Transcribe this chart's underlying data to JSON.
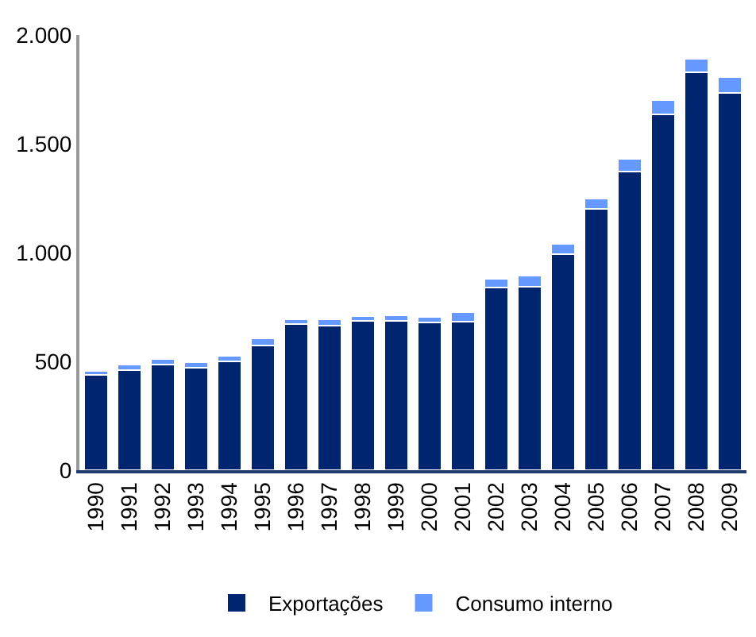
{
  "chart_data": {
    "type": "bar",
    "stacked": true,
    "categories": [
      "1990",
      "1991",
      "1992",
      "1993",
      "1994",
      "1995",
      "1996",
      "1997",
      "1998",
      "1999",
      "2000",
      "2001",
      "2002",
      "2003",
      "2004",
      "2005",
      "2006",
      "2007",
      "2008",
      "2009"
    ],
    "series": [
      {
        "name": "Exportações",
        "color": "#002570",
        "values": [
          437,
          460,
          484,
          472,
          500,
          573,
          671,
          664,
          685,
          685,
          678,
          683,
          839,
          844,
          994,
          1202,
          1373,
          1635,
          1827,
          1733
        ]
      },
      {
        "name": "Consumo interno",
        "color": "#6699ff",
        "values": [
          21,
          24,
          28,
          23,
          24,
          33,
          24,
          28,
          24,
          28,
          25,
          44,
          42,
          49,
          47,
          47,
          56,
          65,
          65,
          73
        ]
      }
    ],
    "ylim": [
      0,
      2000
    ],
    "yticks": [
      0,
      500,
      {
        "value": 1000,
        "label": "1.000"
      },
      {
        "value": 1500,
        "label": "1.500"
      },
      {
        "value": 2000,
        "label": "2.000"
      }
    ],
    "legend": "bottom"
  }
}
